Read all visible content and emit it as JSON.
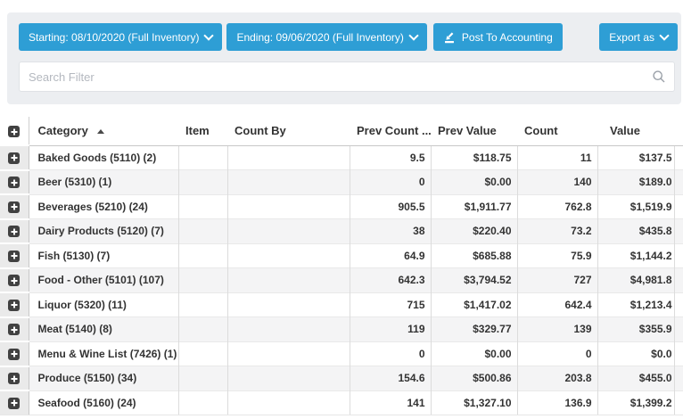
{
  "toolbar": {
    "starting_label": "Starting: 08/10/2020 (Full Inventory)",
    "ending_label": "Ending: 09/06/2020 (Full Inventory)",
    "post_label": "Post To Accounting",
    "export_label": "Export as"
  },
  "search": {
    "placeholder": "Search Filter"
  },
  "colors": {
    "accent_blue": "#2e9ed5",
    "panel_bg": "#eceef1",
    "row_stripe": "#f4f4f5",
    "expand_column_bg": "#eaeaea",
    "text": "#333333"
  },
  "table": {
    "columns": [
      "Category",
      "Item",
      "Count By",
      "Prev Count ...",
      "Prev Value",
      "Count",
      "Value"
    ],
    "sorted_column": "Category",
    "sort_direction": "ascending",
    "rows": [
      {
        "category": "Baked Goods (5110) (2)",
        "item": "",
        "count_by": "",
        "prev_count": "9.5",
        "prev_value": "$118.75",
        "count": "11",
        "value": "$137.5"
      },
      {
        "category": "Beer (5310) (1)",
        "item": "",
        "count_by": "",
        "prev_count": "0",
        "prev_value": "$0.00",
        "count": "140",
        "value": "$189.0"
      },
      {
        "category": "Beverages (5210) (24)",
        "item": "",
        "count_by": "",
        "prev_count": "905.5",
        "prev_value": "$1,911.77",
        "count": "762.8",
        "value": "$1,519.9"
      },
      {
        "category": "Dairy Products (5120) (7)",
        "item": "",
        "count_by": "",
        "prev_count": "38",
        "prev_value": "$220.40",
        "count": "73.2",
        "value": "$435.8"
      },
      {
        "category": "Fish (5130) (7)",
        "item": "",
        "count_by": "",
        "prev_count": "64.9",
        "prev_value": "$685.88",
        "count": "75.9",
        "value": "$1,144.2"
      },
      {
        "category": "Food - Other (5101) (107)",
        "item": "",
        "count_by": "",
        "prev_count": "642.3",
        "prev_value": "$3,794.52",
        "count": "727",
        "value": "$4,981.8"
      },
      {
        "category": "Liquor (5320) (11)",
        "item": "",
        "count_by": "",
        "prev_count": "715",
        "prev_value": "$1,417.02",
        "count": "642.4",
        "value": "$1,213.4"
      },
      {
        "category": "Meat (5140) (8)",
        "item": "",
        "count_by": "",
        "prev_count": "119",
        "prev_value": "$329.77",
        "count": "139",
        "value": "$355.9"
      },
      {
        "category": "Menu & Wine List (7426) (1)",
        "item": "",
        "count_by": "",
        "prev_count": "0",
        "prev_value": "$0.00",
        "count": "0",
        "value": "$0.0"
      },
      {
        "category": "Produce (5150) (34)",
        "item": "",
        "count_by": "",
        "prev_count": "154.6",
        "prev_value": "$500.86",
        "count": "203.8",
        "value": "$455.0"
      },
      {
        "category": "Seafood (5160) (24)",
        "item": "",
        "count_by": "",
        "prev_count": "141",
        "prev_value": "$1,327.10",
        "count": "136.9",
        "value": "$1,399.2"
      }
    ]
  }
}
